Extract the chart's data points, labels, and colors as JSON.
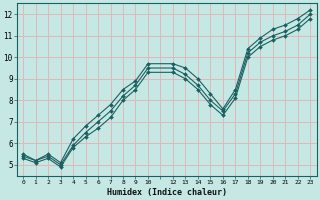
{
  "xlabel": "Humidex (Indice chaleur)",
  "background_color": "#c5e8e5",
  "grid_color": "#e0b8b8",
  "line_color": "#1a6060",
  "xlim": [
    -0.5,
    23.5
  ],
  "ylim": [
    4.5,
    12.5
  ],
  "xtick_positions": [
    0,
    1,
    2,
    3,
    4,
    5,
    6,
    7,
    8,
    9,
    10,
    11,
    12,
    13,
    14,
    15,
    16,
    17,
    18,
    19,
    20,
    21,
    22,
    23
  ],
  "xtick_labels": [
    "0",
    "1",
    "2",
    "3",
    "4",
    "5",
    "6",
    "7",
    "8",
    "9",
    "10",
    "",
    "12",
    "13",
    "14",
    "15",
    "16",
    "17",
    "18",
    "19",
    "20",
    "21",
    "22",
    "23"
  ],
  "yticks": [
    5,
    6,
    7,
    8,
    9,
    10,
    11,
    12
  ],
  "line1_x": [
    0,
    1,
    2,
    3,
    4,
    5,
    6,
    7,
    8,
    9,
    10,
    12,
    13,
    14,
    15,
    16,
    17,
    18,
    19,
    20,
    21,
    22,
    23
  ],
  "line1_y": [
    5.5,
    5.2,
    5.5,
    5.1,
    6.2,
    6.8,
    7.3,
    7.8,
    8.5,
    8.9,
    9.7,
    9.7,
    9.5,
    9.0,
    8.3,
    7.6,
    8.5,
    10.4,
    10.9,
    11.3,
    11.5,
    11.8,
    12.2
  ],
  "line2_x": [
    0,
    1,
    2,
    3,
    4,
    5,
    6,
    7,
    8,
    9,
    10,
    12,
    13,
    14,
    15,
    16,
    17,
    18,
    19,
    20,
    21,
    22,
    23
  ],
  "line2_y": [
    5.4,
    5.2,
    5.4,
    5.0,
    5.9,
    6.5,
    7.0,
    7.5,
    8.2,
    8.7,
    9.5,
    9.5,
    9.2,
    8.7,
    8.0,
    7.5,
    8.3,
    10.2,
    10.7,
    11.0,
    11.2,
    11.5,
    12.0
  ],
  "line3_x": [
    0,
    1,
    2,
    3,
    4,
    5,
    6,
    7,
    8,
    9,
    10,
    12,
    13,
    14,
    15,
    16,
    17,
    18,
    19,
    20,
    21,
    22,
    23
  ],
  "line3_y": [
    5.3,
    5.1,
    5.3,
    4.9,
    5.8,
    6.3,
    6.7,
    7.2,
    8.0,
    8.5,
    9.3,
    9.3,
    9.0,
    8.5,
    7.8,
    7.3,
    8.1,
    10.0,
    10.5,
    10.8,
    11.0,
    11.3,
    11.8
  ]
}
